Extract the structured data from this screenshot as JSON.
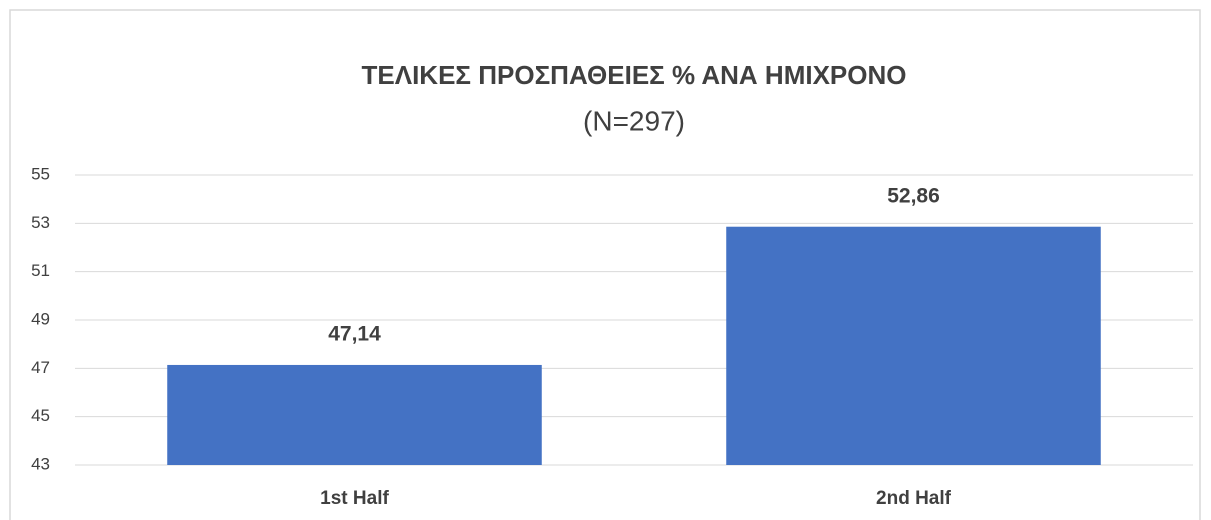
{
  "chart_data": {
    "type": "bar",
    "title": "ΤΕΛΙΚΕΣ ΠΡΟΣΠΑΘΕΙΕΣ % ΑΝΑ ΗΜΙΧΡΟΝΟ",
    "subtitle": "(N=297)",
    "categories": [
      "1st Half",
      "2nd Half"
    ],
    "values": [
      47.14,
      52.86
    ],
    "value_labels": [
      "47,14",
      "52,86"
    ],
    "color": "#4472c4",
    "ylim": [
      43,
      55
    ],
    "yticks": [
      43,
      45,
      47,
      49,
      51,
      53,
      55
    ],
    "grid": true
  }
}
